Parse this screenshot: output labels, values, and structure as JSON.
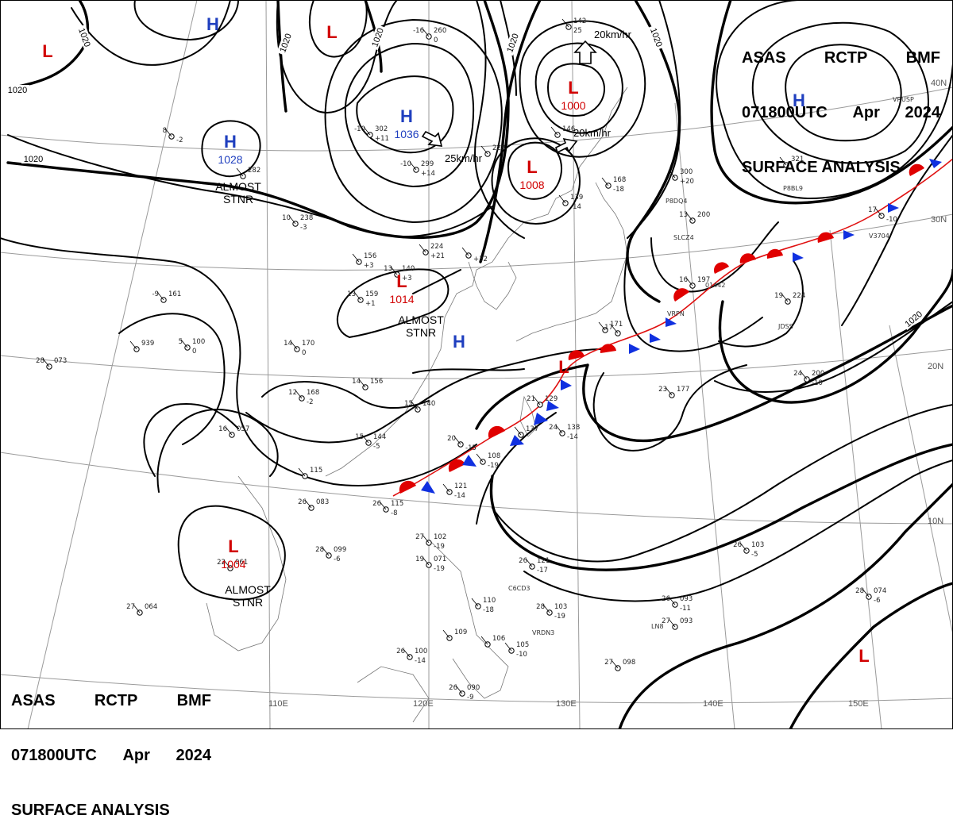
{
  "header": {
    "line1": [
      "ASAS",
      "RCTP",
      "BMF"
    ],
    "line2": [
      "071800UTC",
      "Apr",
      "2024"
    ],
    "line3": "SURFACE ANALYSIS"
  },
  "colors": {
    "high": "#1f3fbf",
    "low": "#d10000",
    "warm_front": "#e00000",
    "cold_front": "#1030e0",
    "isobar": "#000000",
    "grid": "#9a9a9a"
  },
  "lon_labels": [
    "110E",
    "120E",
    "130E",
    "140E",
    "150E"
  ],
  "lat_labels": [
    "40N",
    "30N",
    "20N",
    "10N"
  ],
  "isobar_labels": [
    "1020",
    "1020",
    "1020",
    "1020",
    "1020",
    "1020",
    "1020"
  ],
  "pressure_centers": [
    {
      "type": "L",
      "value": ""
    },
    {
      "type": "H",
      "value": ""
    },
    {
      "type": "L",
      "value": ""
    },
    {
      "type": "H",
      "value": "1036"
    },
    {
      "type": "L",
      "value": "1000"
    },
    {
      "type": "L",
      "value": "1008"
    },
    {
      "type": "H",
      "value": "1028"
    },
    {
      "type": "H",
      "value": ""
    },
    {
      "type": "L",
      "value": "1014"
    },
    {
      "type": "H",
      "value": ""
    },
    {
      "type": "L",
      "value": ""
    },
    {
      "type": "L",
      "value": "1004"
    },
    {
      "type": "L",
      "value": ""
    }
  ],
  "notes": [
    {
      "text": "ALMOST\nSTNR"
    },
    {
      "text": "ALMOST\nSTNR"
    },
    {
      "text": "ALMOST\nSTNR"
    }
  ],
  "motions": [
    "20km/hr",
    "20km/hr",
    "25km/hr"
  ],
  "stations": [
    {
      "t": "-16",
      "p": "260",
      "d": "0"
    },
    {
      "t": "",
      "p": "142",
      "d": "25"
    },
    {
      "t": "8",
      "p": "",
      "d": "-2"
    },
    {
      "t": "-10",
      "p": "302",
      "d": "+11"
    },
    {
      "t": "-10",
      "p": "299",
      "d": "+14"
    },
    {
      "t": "",
      "p": "146",
      "d": ""
    },
    {
      "t": "",
      "p": "228",
      "d": ""
    },
    {
      "t": "",
      "p": "139",
      "d": "-14"
    },
    {
      "t": "",
      "p": "168",
      "d": "-18"
    },
    {
      "t": "",
      "p": "300",
      "d": "+20"
    },
    {
      "t": "",
      "p": "321",
      "d": ""
    },
    {
      "t": "10",
      "p": "238",
      "d": "-3"
    },
    {
      "t": "",
      "p": "282",
      "d": ""
    },
    {
      "t": "",
      "p": "224",
      "d": "+21"
    },
    {
      "t": "",
      "p": "",
      "d": "+32"
    },
    {
      "t": "",
      "p": "156",
      "d": "+3"
    },
    {
      "t": "13",
      "p": "140",
      "d": "+3"
    },
    {
      "t": "13",
      "p": "159",
      "d": "+1"
    },
    {
      "t": "-9",
      "p": "161",
      "d": ""
    },
    {
      "t": "",
      "p": "939",
      "d": ""
    },
    {
      "t": "28",
      "p": "073",
      "d": ""
    },
    {
      "t": "5",
      "p": "100",
      "d": "0"
    },
    {
      "t": "14",
      "p": "170",
      "d": "0"
    },
    {
      "t": "14",
      "p": "156",
      "d": ""
    },
    {
      "t": "12",
      "p": "168",
      "d": "-2"
    },
    {
      "t": "15",
      "p": "140",
      "d": ""
    },
    {
      "t": "15",
      "p": "144",
      "d": "-5"
    },
    {
      "t": "16",
      "p": "057",
      "d": ""
    },
    {
      "t": "",
      "p": "115",
      "d": ""
    },
    {
      "t": "26",
      "p": "083",
      "d": ""
    },
    {
      "t": "26",
      "p": "115",
      "d": "-8"
    },
    {
      "t": "28",
      "p": "099",
      "d": "-6"
    },
    {
      "t": "22",
      "p": "061",
      "d": ""
    },
    {
      "t": "27",
      "p": "064",
      "d": ""
    },
    {
      "t": "21",
      "p": "129",
      "d": ""
    },
    {
      "t": "24",
      "p": "138",
      "d": "-14"
    },
    {
      "t": "",
      "p": "137",
      "d": ""
    },
    {
      "t": "",
      "p": "108",
      "d": "-19"
    },
    {
      "t": "",
      "p": "121",
      "d": "-14"
    },
    {
      "t": "20",
      "p": "",
      "d": "-15"
    },
    {
      "t": "23",
      "p": "177",
      "d": ""
    },
    {
      "t": "",
      "p": "171",
      "d": ""
    },
    {
      "t": "17",
      "p": "",
      "d": ""
    },
    {
      "t": "16",
      "p": "197",
      "d": ""
    },
    {
      "t": "19",
      "p": "224",
      "d": ""
    },
    {
      "t": "24",
      "p": "200",
      "d": "-10"
    },
    {
      "t": "13",
      "p": "200",
      "d": ""
    },
    {
      "t": "17",
      "p": "",
      "d": "-10"
    },
    {
      "t": "27",
      "p": "102",
      "d": "-19"
    },
    {
      "t": "19",
      "p": "071",
      "d": "-19"
    },
    {
      "t": "26",
      "p": "121",
      "d": "-17"
    },
    {
      "t": "28",
      "p": "103",
      "d": "-19"
    },
    {
      "t": "",
      "p": "110",
      "d": "-18"
    },
    {
      "t": "26",
      "p": "093",
      "d": "-11"
    },
    {
      "t": "27",
      "p": "093",
      "d": ""
    },
    {
      "t": "26",
      "p": "103",
      "d": "-5"
    },
    {
      "t": "28",
      "p": "074",
      "d": "-6"
    },
    {
      "t": "26",
      "p": "100",
      "d": "-14"
    },
    {
      "t": "",
      "p": "105",
      "d": "-10"
    },
    {
      "t": "",
      "p": "109",
      "d": ""
    },
    {
      "t": "",
      "p": "106",
      "d": ""
    },
    {
      "t": "26",
      "p": "090",
      "d": "-9"
    },
    {
      "t": "27",
      "p": "098",
      "d": ""
    }
  ],
  "ship_ids": [
    "SLCZ4",
    "VRPN",
    "JDSS",
    "V3704",
    "P8DQ4",
    "C6CD3",
    "VRDN3",
    "VRUSP",
    "P8BL9",
    "01442",
    "LN8"
  ]
}
